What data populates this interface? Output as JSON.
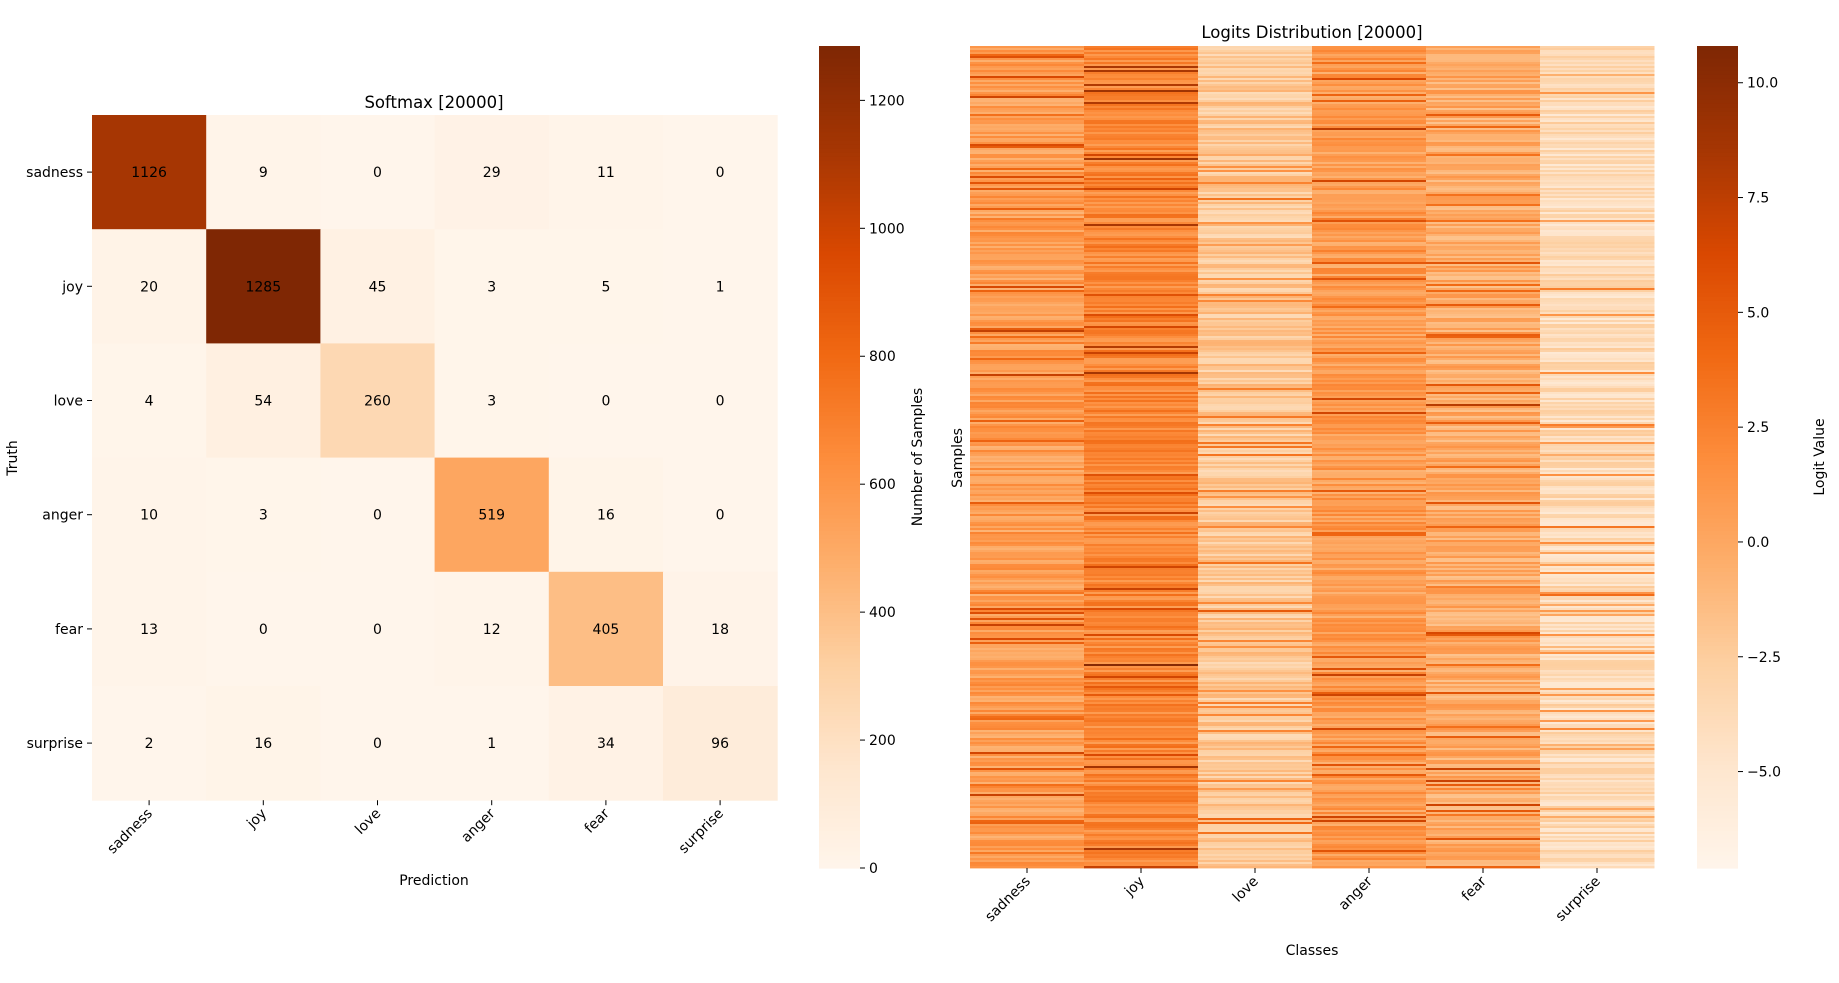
{
  "chart_data": [
    {
      "type": "heatmap",
      "title": "Softmax [20000]",
      "xlabel": "Prediction",
      "ylabel": "Truth",
      "x_categories": [
        "sadness",
        "joy",
        "love",
        "anger",
        "fear",
        "surprise"
      ],
      "y_categories": [
        "sadness",
        "joy",
        "love",
        "anger",
        "fear",
        "surprise"
      ],
      "values": [
        [
          1126,
          9,
          0,
          29,
          11,
          0
        ],
        [
          20,
          1285,
          45,
          3,
          5,
          1
        ],
        [
          4,
          54,
          260,
          3,
          0,
          0
        ],
        [
          10,
          3,
          0,
          519,
          16,
          0
        ],
        [
          13,
          0,
          0,
          12,
          405,
          18
        ],
        [
          2,
          16,
          0,
          1,
          34,
          96
        ]
      ],
      "annotated": true,
      "colormap": "Oranges",
      "colorbar": {
        "label": "Number of Samples",
        "range": [
          0,
          1285
        ],
        "ticks": [
          0,
          200,
          400,
          600,
          800,
          1000,
          1200
        ],
        "tick_labels": [
          "0",
          "200",
          "400",
          "600",
          "800",
          "1000",
          "1200"
        ]
      }
    },
    {
      "type": "heatmap",
      "title": "Logits Distribution [20000]",
      "xlabel": "Classes",
      "ylabel": "Samples",
      "x_categories": [
        "sadness",
        "joy",
        "love",
        "anger",
        "fear",
        "surprise"
      ],
      "y_categories": [],
      "n_samples_shown": "dense per-sample rows (not individually legible)",
      "approx_column_level": {
        "sadness": "medium-high",
        "joy": "highest",
        "love": "low",
        "anger": "medium-high",
        "fear": "medium",
        "surprise": "lowest"
      },
      "colormap": "Oranges",
      "colorbar": {
        "label": "Logit Value",
        "range": [
          -7.1,
          10.8
        ],
        "ticks": [
          -5.0,
          -2.5,
          0.0,
          2.5,
          5.0,
          7.5,
          10.0
        ],
        "tick_labels": [
          "−5.0",
          "−2.5",
          "0.0",
          "2.5",
          "5.0",
          "7.5",
          "10.0"
        ]
      }
    }
  ]
}
